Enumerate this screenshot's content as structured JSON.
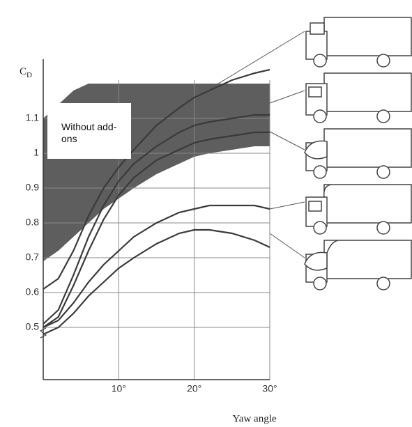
{
  "chart_data": {
    "type": "line",
    "ylabel": {
      "main": "C",
      "sub": "D"
    },
    "xlabel": "Yaw angle",
    "annotation": "Without add-ons",
    "x": [
      0,
      2,
      4,
      6,
      8,
      10,
      12,
      15,
      18,
      20,
      22,
      25,
      28,
      30
    ],
    "band": {
      "color": "#5e5e5e",
      "upper": [
        1.1,
        1.14,
        1.18,
        1.2,
        1.2,
        1.2,
        1.2,
        1.2,
        1.2,
        1.2,
        1.2,
        1.2,
        1.2,
        1.2
      ],
      "lower": [
        0.69,
        0.72,
        0.76,
        0.8,
        0.84,
        0.87,
        0.9,
        0.94,
        0.97,
        0.99,
        1.0,
        1.01,
        1.02,
        1.02
      ]
    },
    "series": [
      {
        "color": "#3a3a3a",
        "values": [
          0.61,
          0.64,
          0.72,
          0.82,
          0.9,
          0.96,
          1.01,
          1.08,
          1.13,
          1.16,
          1.18,
          1.21,
          1.23,
          1.24
        ]
      },
      {
        "color": "#3a3a3a",
        "values": [
          0.51,
          0.55,
          0.65,
          0.76,
          0.85,
          0.92,
          0.97,
          1.02,
          1.06,
          1.08,
          1.09,
          1.1,
          1.11,
          1.11
        ]
      },
      {
        "color": "#3a3a3a",
        "values": [
          0.5,
          0.53,
          0.62,
          0.72,
          0.81,
          0.88,
          0.93,
          0.98,
          1.01,
          1.03,
          1.04,
          1.05,
          1.06,
          1.06
        ]
      },
      {
        "color": "#3a3a3a",
        "values": [
          0.5,
          0.52,
          0.57,
          0.63,
          0.68,
          0.72,
          0.76,
          0.8,
          0.83,
          0.84,
          0.85,
          0.85,
          0.85,
          0.84
        ]
      },
      {
        "color": "#3a3a3a",
        "values": [
          0.48,
          0.5,
          0.54,
          0.59,
          0.63,
          0.67,
          0.7,
          0.74,
          0.77,
          0.78,
          0.78,
          0.77,
          0.75,
          0.73
        ]
      }
    ],
    "xlim": [
      0,
      30
    ],
    "xticks": [
      {
        "value": 10,
        "label": "10°"
      },
      {
        "value": 20,
        "label": "20°"
      },
      {
        "value": 30,
        "label": "30°"
      }
    ],
    "ylim": [
      0.35,
      1.25
    ],
    "yticks": [
      0.5,
      0.6,
      0.7,
      0.8,
      0.9,
      1.0,
      1.1
    ],
    "grid": true
  }
}
